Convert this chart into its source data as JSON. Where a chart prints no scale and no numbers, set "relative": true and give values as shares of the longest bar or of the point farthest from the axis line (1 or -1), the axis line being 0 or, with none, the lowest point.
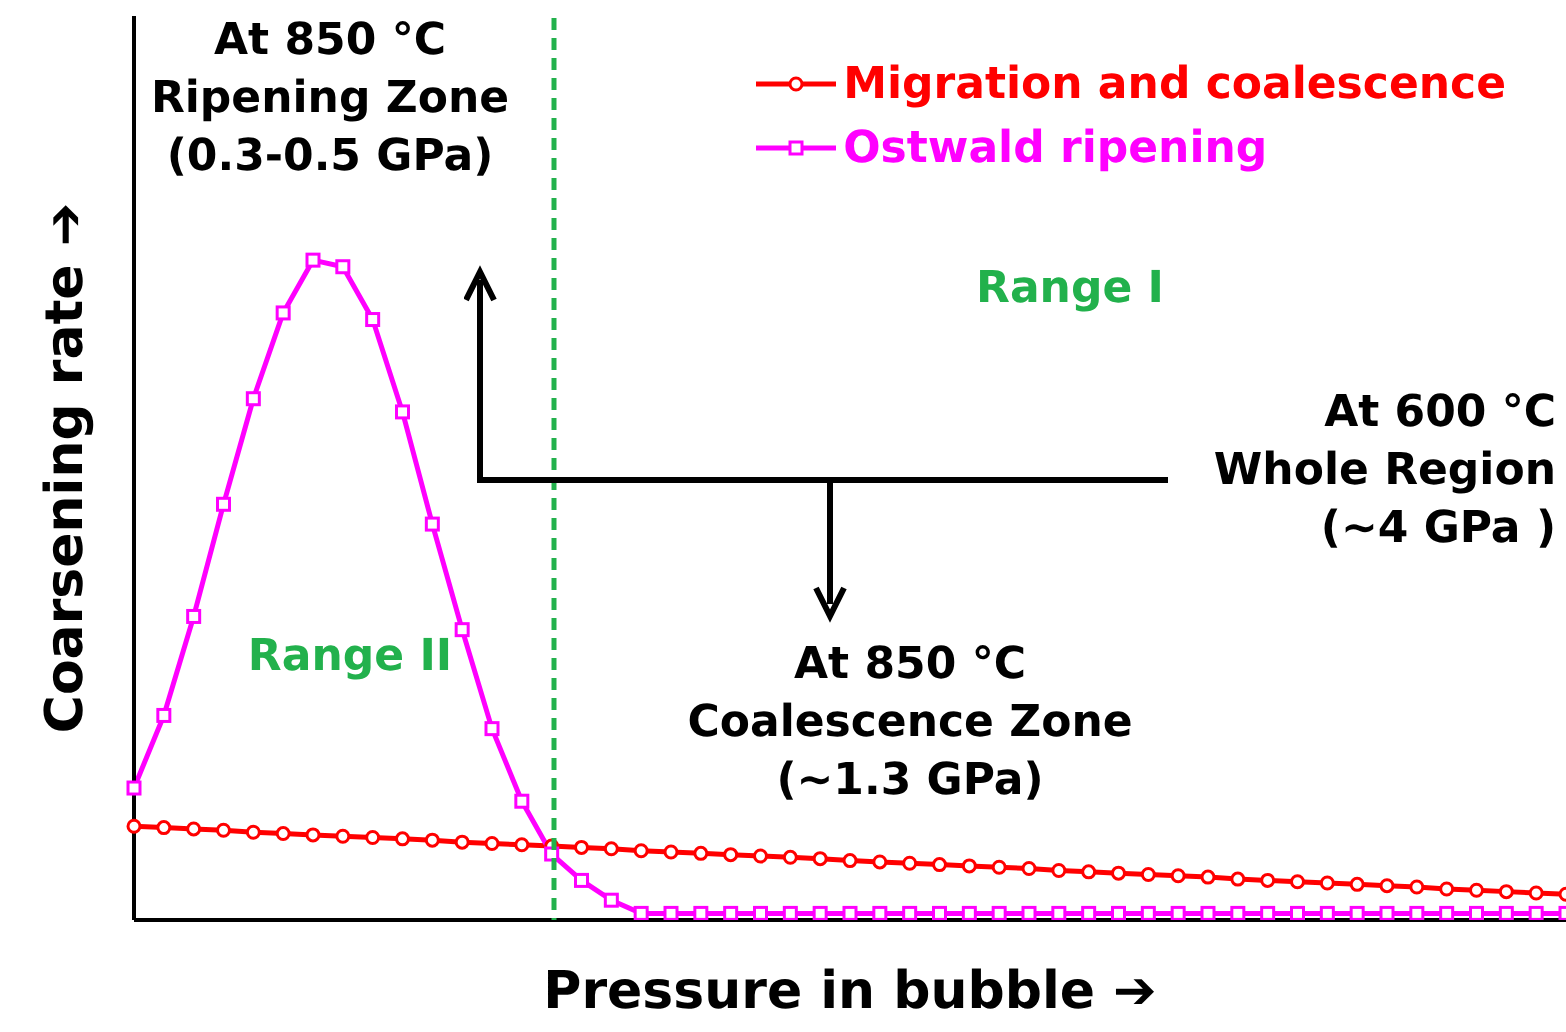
{
  "chart_data": {
    "type": "line",
    "relative": true,
    "xlabel": "Pressure in bubble ➔",
    "ylabel": "Coarsening rate ➔",
    "tick_labels": false,
    "grid": false,
    "legend": "top right",
    "categories": [
      null,
      null,
      null,
      null,
      null,
      null,
      null,
      null,
      null,
      null,
      null,
      null,
      null,
      null,
      null,
      null,
      null,
      null,
      null,
      null,
      null,
      null,
      null,
      null,
      null,
      null,
      null,
      null,
      null,
      null,
      null,
      null,
      null,
      null,
      null,
      null,
      null,
      null,
      null,
      null,
      null,
      null,
      null,
      null,
      null,
      null,
      null,
      null,
      null
    ],
    "series": [
      {
        "name": "Migration and coalescence",
        "color": "#ff0000",
        "marker": "circle",
        "values": [
          0.142,
          0.14,
          0.138,
          0.136,
          0.133,
          0.131,
          0.129,
          0.127,
          0.125,
          0.123,
          0.121,
          0.118,
          0.116,
          0.114,
          0.112,
          0.11,
          0.108,
          0.105,
          0.103,
          0.101,
          0.099,
          0.097,
          0.095,
          0.093,
          0.09,
          0.088,
          0.086,
          0.084,
          0.082,
          0.08,
          0.078,
          0.075,
          0.073,
          0.071,
          0.069,
          0.067,
          0.065,
          0.062,
          0.06,
          0.058,
          0.056,
          0.054,
          0.052,
          0.05,
          0.047,
          0.045,
          0.043,
          0.041,
          0.039
        ]
      },
      {
        "name": "Ostwald ripening",
        "color": "#ff00ff",
        "marker": "square",
        "values": [
          0.2,
          0.31,
          0.46,
          0.63,
          0.79,
          0.92,
          1.0,
          0.99,
          0.91,
          0.77,
          0.6,
          0.44,
          0.29,
          0.18,
          0.1,
          0.06,
          0.03,
          0.01,
          0.01,
          0.01,
          0.01,
          0.01,
          0.01,
          0.01,
          0.01,
          0.01,
          0.01,
          0.01,
          0.01,
          0.01,
          0.01,
          0.01,
          0.01,
          0.01,
          0.01,
          0.01,
          0.01,
          0.01,
          0.01,
          0.01,
          0.01,
          0.01,
          0.01,
          0.01,
          0.01,
          0.01,
          0.01,
          0.01,
          0.01
        ]
      }
    ],
    "annotations": [
      "At 850 °C\nRipening Zone\n(0.3-0.5 GPa)",
      "Range I",
      "At 600 °C\nWhole Region\n(~4 GPa )",
      "At 850 °C\nCoalescence Zone\n(~1.3 GPa)",
      "Range II"
    ]
  }
}
